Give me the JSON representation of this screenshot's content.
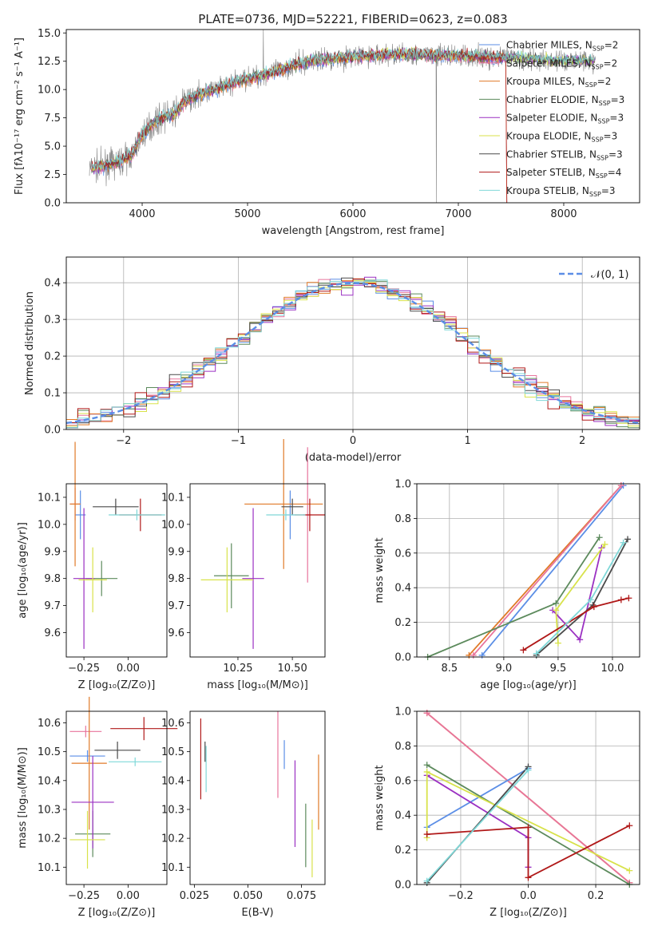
{
  "chart_data": [
    {
      "id": "spectrum",
      "type": "line",
      "title": "PLATE=0736, MJD=52221, FIBERID=0623, z=0.083",
      "xlabel": "wavelength [Angstrom, rest frame]",
      "ylabel": "Flux [fλ10⁻¹⁷ erg cm⁻² s⁻¹ A⁻¹]",
      "xlim": [
        3280,
        8720
      ],
      "ylim": [
        0,
        15.3
      ],
      "xticks": [
        4000,
        5000,
        6000,
        7000,
        8000
      ],
      "yticks": [
        0.0,
        2.5,
        5.0,
        7.5,
        10.0,
        12.5,
        15.0
      ],
      "ytick_labels": [
        "0.0",
        "2.5",
        "5.0",
        "7.5",
        "10.0",
        "12.5",
        "15.0"
      ],
      "legend_position": "top-right",
      "data_series": {
        "name": "",
        "color": "#808080"
      },
      "continuum": {
        "x": [
          3500,
          3600,
          3700,
          3800,
          3900,
          4000,
          4100,
          4200,
          4300,
          4400,
          4500,
          4600,
          4700,
          4800,
          4900,
          5000,
          5200,
          5400,
          5600,
          5800,
          6000,
          6200,
          6400,
          6600,
          6800,
          7000,
          7200,
          7400,
          7600,
          7800,
          8000,
          8200,
          8300
        ],
        "y": [
          3.0,
          3.2,
          3.4,
          3.7,
          4.2,
          6.0,
          7.0,
          7.6,
          7.8,
          8.9,
          9.4,
          9.8,
          10.0,
          10.4,
          10.7,
          11.0,
          11.4,
          12.0,
          12.5,
          12.7,
          12.9,
          13.0,
          13.1,
          13.1,
          13.0,
          13.0,
          12.9,
          12.8,
          12.8,
          12.6,
          12.5,
          12.6,
          12.5
        ]
      },
      "legend": [
        {
          "label": "Chabrier MILES, N",
          "sub": "SSP",
          "value": "=2",
          "color": "#5b8ee6"
        },
        {
          "label": "Salpeter MILES, N",
          "sub": "SSP",
          "value": "=2",
          "color": "#e8749c"
        },
        {
          "label": "Kroupa MILES, N",
          "sub": "SSP",
          "value": "=2",
          "color": "#e07a28"
        },
        {
          "label": "Chabrier ELODIE, N",
          "sub": "SSP",
          "value": "=3",
          "color": "#5c8a5c"
        },
        {
          "label": "Salpeter ELODIE, N",
          "sub": "SSP",
          "value": "=3",
          "color": "#9b30c2"
        },
        {
          "label": "Kroupa ELODIE, N",
          "sub": "SSP",
          "value": "=3",
          "color": "#d8e24a"
        },
        {
          "label": "Chabrier STELIB, N",
          "sub": "SSP",
          "value": "=3",
          "color": "#4a4a4a"
        },
        {
          "label": "Salpeter STELIB, N",
          "sub": "SSP",
          "value": "=4",
          "color": "#b01818"
        },
        {
          "label": "Kroupa STELIB, N",
          "sub": "SSP",
          "value": "=3",
          "color": "#7fd8d8"
        }
      ]
    },
    {
      "id": "residuals",
      "type": "line",
      "xlabel": "(data-model)/error",
      "ylabel": "Normed distribution",
      "xlim": [
        -2.5,
        2.5
      ],
      "ylim": [
        0,
        0.47
      ],
      "xticks": [
        -2,
        -1,
        0,
        1,
        2
      ],
      "xtick_labels": [
        "−2",
        "−1",
        "0",
        "1",
        "2"
      ],
      "yticks": [
        0.0,
        0.1,
        0.2,
        0.3,
        0.4
      ],
      "ytick_labels": [
        "0.0",
        "0.1",
        "0.2",
        "0.3",
        "0.4"
      ],
      "grid": true,
      "legend_position": "top-right",
      "reference": {
        "label": "𝒩(0, 1)",
        "color": "#5b8ee6",
        "mean": 0,
        "sigma": 1
      },
      "bin_width": 0.1
    },
    {
      "id": "age-Z",
      "type": "scatter",
      "xlabel": "Z [log₁₀(Z/Z⊙)]",
      "ylabel": "age  [log₁₀(age/yr)]",
      "xlim": [
        -0.35,
        0.22
      ],
      "ylim": [
        9.51,
        10.15
      ],
      "xticks": [
        -0.25,
        0.0
      ],
      "xtick_labels": [
        "−0.25",
        "0.00"
      ],
      "yticks": [
        9.6,
        9.7,
        9.8,
        9.9,
        10.0,
        10.1
      ],
      "ytick_labels": [
        "9.6",
        "9.7",
        "9.8",
        "9.9",
        "10.0",
        "10.1"
      ],
      "points": [
        {
          "x": -0.27,
          "xerr": 0.03,
          "y": 10.035,
          "yerr": 0.09,
          "color": "#5b8ee6"
        },
        {
          "x": -0.3,
          "xerr": 0.03,
          "y": 10.075,
          "yerr": 0.06,
          "color": "#e8749c"
        },
        {
          "x": -0.3,
          "xerr": 0.03,
          "y": 10.075,
          "yerr": 0.23,
          "color": "#e07a28"
        },
        {
          "x": -0.15,
          "xerr": 0.09,
          "y": 9.8,
          "yerr": 0.065,
          "color": "#5c8a5c"
        },
        {
          "x": -0.25,
          "xerr": 0.06,
          "y": 9.8,
          "yerr": 0.26,
          "color": "#9b30c2"
        },
        {
          "x": -0.2,
          "xerr": 0.08,
          "y": 9.795,
          "yerr": 0.12,
          "color": "#d8e24a"
        },
        {
          "x": -0.07,
          "xerr": 0.13,
          "y": 10.065,
          "yerr": 0.03,
          "color": "#4a4a4a"
        },
        {
          "x": 0.07,
          "xerr": 0.12,
          "y": 10.035,
          "yerr": 0.06,
          "color": "#b01818"
        },
        {
          "x": 0.05,
          "xerr": 0.16,
          "y": 10.035,
          "yerr": 0.02,
          "color": "#7fd8d8"
        }
      ]
    },
    {
      "id": "age-mass",
      "type": "scatter",
      "xlabel": "mass [log₁₀(M/M⊙)]",
      "ylabel": "",
      "xlim": [
        10.03,
        10.65
      ],
      "ylim": [
        9.51,
        10.15
      ],
      "xticks": [
        10.25,
        10.5
      ],
      "xtick_labels": [
        "10.25",
        "10.50"
      ],
      "yticks": [
        9.6,
        9.7,
        9.8,
        9.9,
        10.0,
        10.1
      ],
      "ytick_labels": [
        "9.6",
        "9.7",
        "9.8",
        "9.9",
        "10.0",
        "10.1"
      ],
      "points": [
        {
          "x": 10.49,
          "xerr": 0.02,
          "y": 10.035,
          "yerr": 0.09,
          "color": "#5b8ee6"
        },
        {
          "x": 10.57,
          "xerr": 0.02,
          "y": 10.035,
          "yerr": 0.25,
          "color": "#e8749c"
        },
        {
          "x": 10.46,
          "xerr": 0.18,
          "y": 10.075,
          "yerr": 0.24,
          "color": "#e07a28"
        },
        {
          "x": 10.22,
          "xerr": 0.08,
          "y": 9.81,
          "yerr": 0.12,
          "color": "#5c8a5c"
        },
        {
          "x": 10.32,
          "xerr": 0.05,
          "y": 9.8,
          "yerr": 0.26,
          "color": "#9b30c2"
        },
        {
          "x": 10.2,
          "xerr": 0.12,
          "y": 9.795,
          "yerr": 0.12,
          "color": "#d8e24a"
        },
        {
          "x": 10.5,
          "xerr": 0.05,
          "y": 10.065,
          "yerr": 0.03,
          "color": "#4a4a4a"
        },
        {
          "x": 10.58,
          "xerr": 0.07,
          "y": 10.035,
          "yerr": 0.06,
          "color": "#b01818"
        },
        {
          "x": 10.47,
          "xerr": 0.09,
          "y": 10.035,
          "yerr": 0.02,
          "color": "#7fd8d8"
        }
      ]
    },
    {
      "id": "weight-age",
      "type": "line",
      "xlabel": "age  [log₁₀(age/yr)]",
      "ylabel": "mass weight",
      "xlim": [
        8.2,
        10.25
      ],
      "ylim": [
        0,
        1
      ],
      "xticks": [
        8.5,
        9.0,
        9.5,
        10.0
      ],
      "xtick_labels": [
        "8.5",
        "9.0",
        "9.5",
        "10.0"
      ],
      "yticks": [
        0.0,
        0.2,
        0.4,
        0.6,
        0.8,
        1.0
      ],
      "ytick_labels": [
        "0.0",
        "0.2",
        "0.4",
        "0.6",
        "0.8",
        "1.0"
      ],
      "grid": true,
      "series": [
        {
          "color": "#e07a28",
          "x": [
            8.68,
            10.08
          ],
          "y": [
            0.01,
            0.99
          ]
        },
        {
          "color": "#5b8ee6",
          "x": [
            8.8,
            10.1
          ],
          "y": [
            0.01,
            0.99
          ]
        },
        {
          "color": "#e8749c",
          "x": [
            8.72,
            10.08
          ],
          "y": [
            0.01,
            0.99
          ]
        },
        {
          "color": "#5c8a5c",
          "x": [
            8.3,
            9.48,
            9.88
          ],
          "y": [
            0.0,
            0.31,
            0.69
          ]
        },
        {
          "color": "#9b30c2",
          "x": [
            9.45,
            9.7,
            9.9
          ],
          "y": [
            0.27,
            0.1,
            0.63
          ]
        },
        {
          "color": "#d8e24a",
          "x": [
            9.5,
            9.48,
            9.93
          ],
          "y": [
            0.08,
            0.27,
            0.65
          ]
        },
        {
          "color": "#4a4a4a",
          "x": [
            9.3,
            9.82,
            10.14
          ],
          "y": [
            0.01,
            0.3,
            0.68
          ]
        },
        {
          "color": "#b01818",
          "x": [
            9.18,
            9.83,
            10.08,
            10.15
          ],
          "y": [
            0.04,
            0.29,
            0.33,
            0.34
          ]
        },
        {
          "color": "#7fd8d8",
          "x": [
            9.3,
            9.8,
            10.1
          ],
          "y": [
            0.02,
            0.33,
            0.66
          ]
        }
      ]
    },
    {
      "id": "mass-Z",
      "type": "scatter",
      "xlabel": "Z [log₁₀(Z/Z⊙)]",
      "ylabel": "mass [log₁₀(M/M⊙)]",
      "xlim": [
        -0.35,
        0.22
      ],
      "ylim": [
        10.04,
        10.64
      ],
      "xticks": [
        -0.25,
        0.0
      ],
      "xtick_labels": [
        "−0.25",
        "0.00"
      ],
      "yticks": [
        10.1,
        10.2,
        10.3,
        10.4,
        10.5,
        10.6
      ],
      "ytick_labels": [
        "10.1",
        "10.2",
        "10.3",
        "10.4",
        "10.5",
        "10.6"
      ],
      "points": [
        {
          "x": -0.23,
          "xerr": 0.1,
          "y": 10.485,
          "yerr": 0.02,
          "color": "#5b8ee6"
        },
        {
          "x": -0.24,
          "xerr": 0.09,
          "y": 10.57,
          "yerr": 0.02,
          "color": "#e8749c"
        },
        {
          "x": -0.22,
          "xerr": 0.1,
          "y": 10.46,
          "yerr": 0.23,
          "color": "#e07a28"
        },
        {
          "x": -0.2,
          "xerr": 0.1,
          "y": 10.215,
          "yerr": 0.08,
          "color": "#5c8a5c"
        },
        {
          "x": -0.2,
          "xerr": 0.12,
          "y": 10.325,
          "yerr": 0.16,
          "color": "#9b30c2"
        },
        {
          "x": -0.23,
          "xerr": 0.1,
          "y": 10.195,
          "yerr": 0.1,
          "color": "#d8e24a"
        },
        {
          "x": -0.06,
          "xerr": 0.13,
          "y": 10.505,
          "yerr": 0.03,
          "color": "#4a4a4a"
        },
        {
          "x": 0.09,
          "xerr": 0.19,
          "y": 10.58,
          "yerr": 0.04,
          "color": "#b01818"
        },
        {
          "x": 0.04,
          "xerr": 0.15,
          "y": 10.465,
          "yerr": 0.015,
          "color": "#7fd8d8"
        }
      ]
    },
    {
      "id": "mass-EBV",
      "type": "scatter",
      "xlabel": "E(B-V)",
      "ylabel": "",
      "xlim": [
        0.023,
        0.086
      ],
      "ylim": [
        10.04,
        10.64
      ],
      "xticks": [
        0.025,
        0.05,
        0.075
      ],
      "xtick_labels": [
        "0.025",
        "0.050",
        "0.075"
      ],
      "yticks": [
        10.1,
        10.2,
        10.3,
        10.4,
        10.5,
        10.6
      ],
      "ytick_labels": [
        "10.1",
        "10.2",
        "10.3",
        "10.4",
        "10.5",
        "10.6"
      ],
      "points": [
        {
          "x": 0.067,
          "y": 10.49,
          "yerr": 0.05,
          "color": "#5b8ee6"
        },
        {
          "x": 0.064,
          "y": 10.49,
          "yerr": 0.15,
          "color": "#e8749c"
        },
        {
          "x": 0.083,
          "y": 10.36,
          "yerr": 0.13,
          "color": "#e07a28"
        },
        {
          "x": 0.077,
          "y": 10.21,
          "yerr": 0.11,
          "color": "#5c8a5c"
        },
        {
          "x": 0.072,
          "y": 10.32,
          "yerr": 0.15,
          "color": "#9b30c2"
        },
        {
          "x": 0.08,
          "y": 10.165,
          "yerr": 0.1,
          "color": "#d8e24a"
        },
        {
          "x": 0.03,
          "y": 10.5,
          "yerr": 0.035,
          "color": "#4a4a4a"
        },
        {
          "x": 0.028,
          "y": 10.475,
          "yerr": 0.14,
          "color": "#b01818"
        },
        {
          "x": 0.0305,
          "y": 10.44,
          "yerr": 0.08,
          "color": "#7fd8d8"
        }
      ]
    },
    {
      "id": "weight-Z",
      "type": "line",
      "xlabel": "Z [log₁₀(Z/Z⊙)]",
      "ylabel": "mass weight",
      "xlim": [
        -0.33,
        0.33
      ],
      "ylim": [
        0,
        1
      ],
      "xticks": [
        -0.2,
        0.0,
        0.2
      ],
      "xtick_labels": [
        "−0.2",
        "0.0",
        "0.2"
      ],
      "yticks": [
        0.0,
        0.2,
        0.4,
        0.6,
        0.8,
        1.0
      ],
      "ytick_labels": [
        "0.0",
        "0.2",
        "0.4",
        "0.6",
        "0.8",
        "1.0"
      ],
      "grid": true,
      "series": [
        {
          "color": "#e07a28",
          "x": [
            -0.3,
            0.3
          ],
          "y": [
            0.99,
            0.01
          ]
        },
        {
          "color": "#e8749c",
          "x": [
            -0.3,
            0.3
          ],
          "y": [
            0.99,
            0.01
          ]
        },
        {
          "color": "#5b8ee6",
          "x": [
            -0.3,
            0.0
          ],
          "y": [
            0.33,
            0.67
          ]
        },
        {
          "color": "#5c8a5c",
          "x": [
            -0.3,
            0.3
          ],
          "y": [
            0.69,
            0.0
          ]
        },
        {
          "color": "#9b30c2",
          "x": [
            -0.3,
            0.0,
            0.0
          ],
          "y": [
            0.63,
            0.27,
            0.1
          ]
        },
        {
          "color": "#d8e24a",
          "x": [
            -0.3,
            -0.3,
            0.3
          ],
          "y": [
            0.27,
            0.65,
            0.08
          ]
        },
        {
          "color": "#4a4a4a",
          "x": [
            -0.3,
            0.0
          ],
          "y": [
            0.01,
            0.68
          ]
        },
        {
          "color": "#b01818",
          "x": [
            -0.3,
            0.0,
            0.0,
            0.3
          ],
          "y": [
            0.29,
            0.33,
            0.04,
            0.34
          ]
        },
        {
          "color": "#7fd8d8",
          "x": [
            -0.3,
            0.0
          ],
          "y": [
            0.02,
            0.66
          ]
        }
      ]
    }
  ]
}
